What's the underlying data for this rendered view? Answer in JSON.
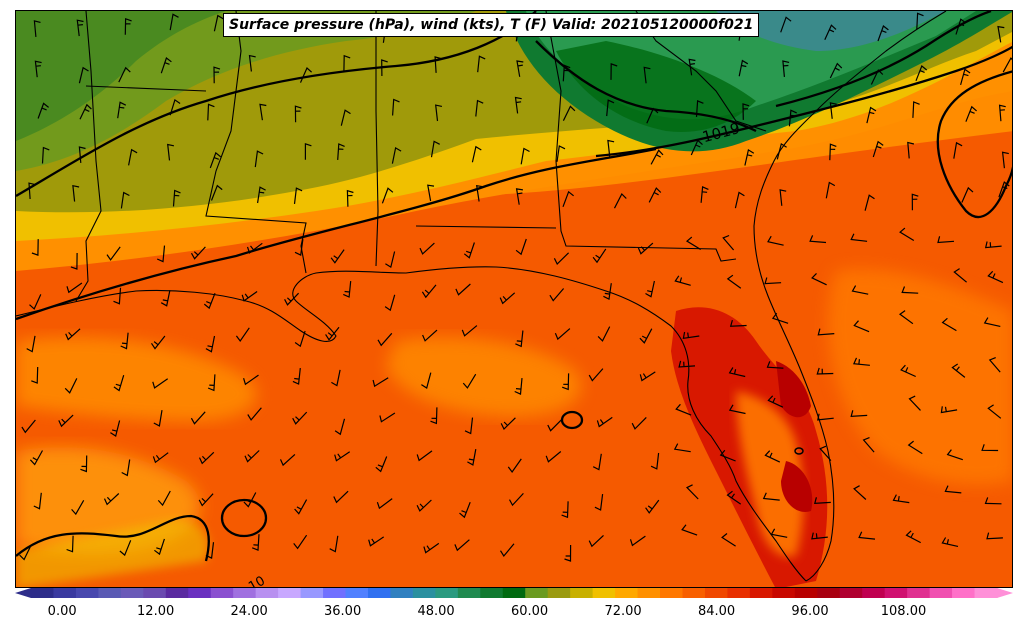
{
  "title": "Surface pressure (hPa), wind (kts), T (F) Valid: 202105120000f021",
  "isobar_labels": [
    "1019",
    "10"
  ],
  "colorbar": {
    "min": -4,
    "max": 120,
    "step": 4,
    "ticks": [
      "0.00",
      "12.00",
      "24.00",
      "36.00",
      "48.00",
      "60.00",
      "72.00",
      "84.00",
      "96.00",
      "108.00"
    ],
    "colors": [
      "#2d2d8a",
      "#3a3aa0",
      "#4848ae",
      "#5a5ab4",
      "#6a5ab8",
      "#6a4ab0",
      "#5a2aa0",
      "#6a30c0",
      "#8a50d0",
      "#a070e0",
      "#b890f0",
      "#c8a8ff",
      "#9898ff",
      "#7070ff",
      "#5080ff",
      "#3070f0",
      "#3080c0",
      "#2a90a0",
      "#2a9a80",
      "#208a50",
      "#107a30",
      "#006a10",
      "#6a9a20",
      "#9a9a10",
      "#c8b000",
      "#f0c000",
      "#ffa800",
      "#ff9000",
      "#ff7800",
      "#f86000",
      "#f04800",
      "#e83000",
      "#d81800",
      "#c80800",
      "#b80000",
      "#a80010",
      "#b00030",
      "#c00050",
      "#d01070",
      "#e03090",
      "#f050b0",
      "#ff70c8",
      "#ff90d8"
    ]
  },
  "colors": {
    "dark_green": "#0a6e1a",
    "mid_green": "#2a8a3a",
    "teal": "#3a8a8a",
    "olive": "#a09a0a",
    "yellow": "#f0c000",
    "orange": "#ff8c00",
    "red_orange": "#f55000",
    "red": "#d81000",
    "dark_red": "#b80000"
  }
}
